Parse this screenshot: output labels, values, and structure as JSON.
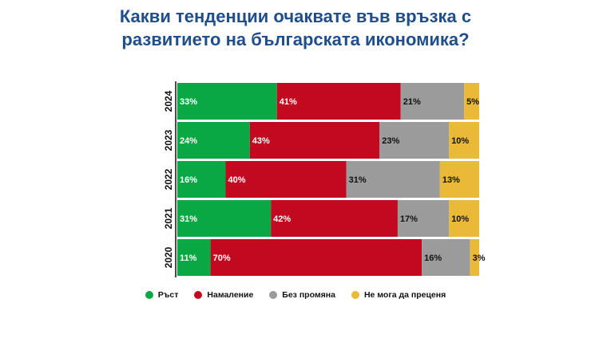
{
  "chart_data": {
    "type": "bar",
    "orientation": "horizontal",
    "stacked": true,
    "title_lines": [
      "Какви тенденции очаквате във връзка с",
      "развитието на българската икономика?"
    ],
    "categories": [
      "2024",
      "2023",
      "2022",
      "2021",
      "2020"
    ],
    "series": [
      {
        "name": "Ръст",
        "color": "#0aa844",
        "label_color": "#ffffff",
        "values": [
          33,
          24,
          16,
          31,
          11
        ]
      },
      {
        "name": "Намаление",
        "color": "#c2091f",
        "label_color": "#ffffff",
        "values": [
          41,
          43,
          40,
          42,
          70
        ]
      },
      {
        "name": "Без промяна",
        "color": "#9b9b9b",
        "label_color": "#111111",
        "values": [
          21,
          23,
          31,
          17,
          16
        ]
      },
      {
        "name": "Не мога да преценя",
        "color": "#e9b937",
        "label_color": "#111111",
        "values": [
          5,
          10,
          13,
          10,
          3
        ]
      }
    ],
    "value_suffix": "%",
    "legend_position": "bottom",
    "grid": false
  }
}
